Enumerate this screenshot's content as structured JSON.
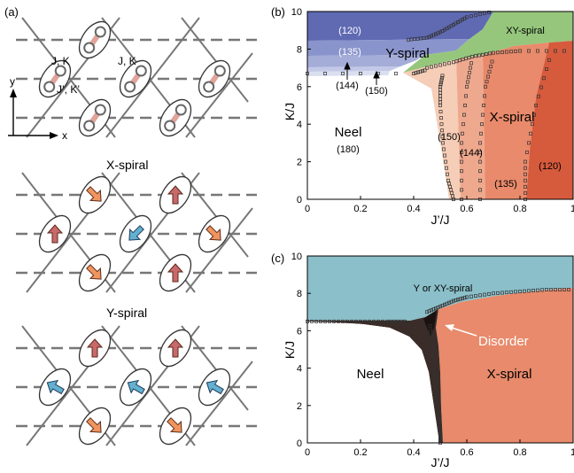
{
  "panel_a": {
    "label": "(a)",
    "axis_y": "y",
    "axis_x": "x",
    "bond_label_1": "J, K",
    "bond_label_2": "J, K",
    "bond_label_3": "J’, K’",
    "x_spiral_title": "X-spiral",
    "y_spiral_title": "Y-spiral"
  },
  "panel_b": {
    "label": "(b)",
    "ylabel": "K/J",
    "xlabel": "J’/J",
    "x_ticks": [
      "0",
      "0.2",
      "0.4",
      "0.6",
      "0.8",
      "1"
    ],
    "y_ticks": [
      "0",
      "2",
      "4",
      "6",
      "8",
      "10"
    ],
    "region_y_spiral": "Y-spiral",
    "region_xy_spiral": "XY-spiral",
    "region_x_spiral": "X-spiral",
    "region_neel": "Neel",
    "neel_angle": "(180)",
    "angle_120_top": "(120)",
    "angle_135_top": "(135)",
    "angle_144_ann": "(144)",
    "angle_150_ann": "(150)",
    "angle_150_x": "(150)",
    "angle_144_x": "(144)",
    "angle_135_x": "(135)",
    "angle_120_x": "(120)"
  },
  "panel_c": {
    "label": "(c)",
    "ylabel": "K/J",
    "xlabel": "J’/J",
    "x_ticks": [
      "0",
      "0.2",
      "0.4",
      "0.6",
      "0.8",
      "1"
    ],
    "y_ticks": [
      "0",
      "2",
      "4",
      "6",
      "8",
      "10"
    ],
    "region_top": "Y or XY-spiral",
    "region_neel": "Neel",
    "region_x_spiral": "X-spiral",
    "disorder": "Disorder"
  },
  "colors": {
    "blue_dark": "#5f6ab3",
    "blue_mid": "#8a94cc",
    "blue_light": "#b9c0e2",
    "green": "#95c67c",
    "salmon_light": "#f6cdb6",
    "salmon_mid": "#eea88d",
    "salmon": "#e88a6b",
    "red": "#d65a3c",
    "teal": "#8bbfc9",
    "dark": "#3a2c28",
    "arrow_red": "#c8696b",
    "arrow_orange": "#f0955e",
    "arrow_blue": "#63b0d0"
  },
  "chart_data": [
    {
      "type": "heatmap",
      "panel": "(b)",
      "xlabel": "J’/J",
      "ylabel": "K/J",
      "xlim": [
        0,
        1
      ],
      "ylim": [
        0,
        10
      ],
      "regions": [
        {
          "name": "Neel",
          "angle": "(180)"
        },
        {
          "name": "Y-spiral",
          "angles": [
            "(120)",
            "(135)",
            "(144)",
            "(150)"
          ]
        },
        {
          "name": "XY-spiral"
        },
        {
          "name": "X-spiral",
          "angles": [
            "(150)",
            "(144)",
            "(135)",
            "(120)"
          ]
        }
      ],
      "boundaries": {
        "neel_y_spiral": {
          "x": [
            0,
            0.4,
            0.45
          ],
          "y": [
            6.7,
            6.7,
            6.9
          ]
        },
        "x_spiral_onset": {
          "x": [
            0.55,
            0.53,
            0.51,
            0.5,
            0.5,
            0.51
          ],
          "y": [
            0,
            1,
            3,
            5,
            6,
            6.7
          ]
        },
        "xy_spiral_lower": {
          "x": [
            0.45,
            0.55,
            0.62,
            0.7,
            0.8,
            1.0
          ],
          "y": [
            7.0,
            7.3,
            7.6,
            7.8,
            7.9,
            7.9
          ]
        },
        "y_spiral_upper": {
          "x": [
            0.38,
            0.45,
            0.5,
            0.55,
            0.6,
            0.7
          ],
          "y": [
            8.5,
            8.6,
            8.9,
            9.3,
            9.7,
            10.0
          ]
        },
        "x_spiral_150_144": {
          "x": [
            0.58,
            0.58,
            0.6,
            0.62
          ],
          "y": [
            0,
            3,
            6,
            7.5
          ]
        },
        "x_spiral_144_135": {
          "x": [
            0.65,
            0.65,
            0.67,
            0.7
          ],
          "y": [
            0,
            3,
            6,
            7.6
          ]
        },
        "x_spiral_135_120": {
          "x": [
            0.82,
            0.82,
            0.86,
            0.92
          ],
          "y": [
            0,
            2,
            5,
            7.9
          ]
        }
      }
    },
    {
      "type": "heatmap",
      "panel": "(c)",
      "xlabel": "J’/J",
      "ylabel": "K/J",
      "xlim": [
        0,
        1
      ],
      "ylim": [
        0,
        10
      ],
      "regions": [
        {
          "name": "Neel"
        },
        {
          "name": "Y or XY-spiral"
        },
        {
          "name": "X-spiral"
        },
        {
          "name": "Disorder"
        }
      ],
      "boundaries": {
        "neel_top": {
          "x": [
            0,
            0.1,
            0.2,
            0.3,
            0.38
          ],
          "y": [
            6.5,
            6.5,
            6.5,
            6.5,
            6.5
          ]
        },
        "spiral_lower": {
          "x": [
            0.45,
            0.5,
            0.55,
            0.6,
            0.7,
            0.8,
            0.9,
            1.0
          ],
          "y": [
            7.0,
            7.3,
            7.6,
            7.8,
            8.0,
            8.1,
            8.2,
            8.2
          ]
        },
        "x_spiral_left": {
          "x": [
            0.5,
            0.5,
            0.49,
            0.48,
            0.47,
            0.46
          ],
          "y": [
            0,
            0.5,
            1.5,
            3,
            5,
            6.5
          ]
        }
      }
    }
  ]
}
